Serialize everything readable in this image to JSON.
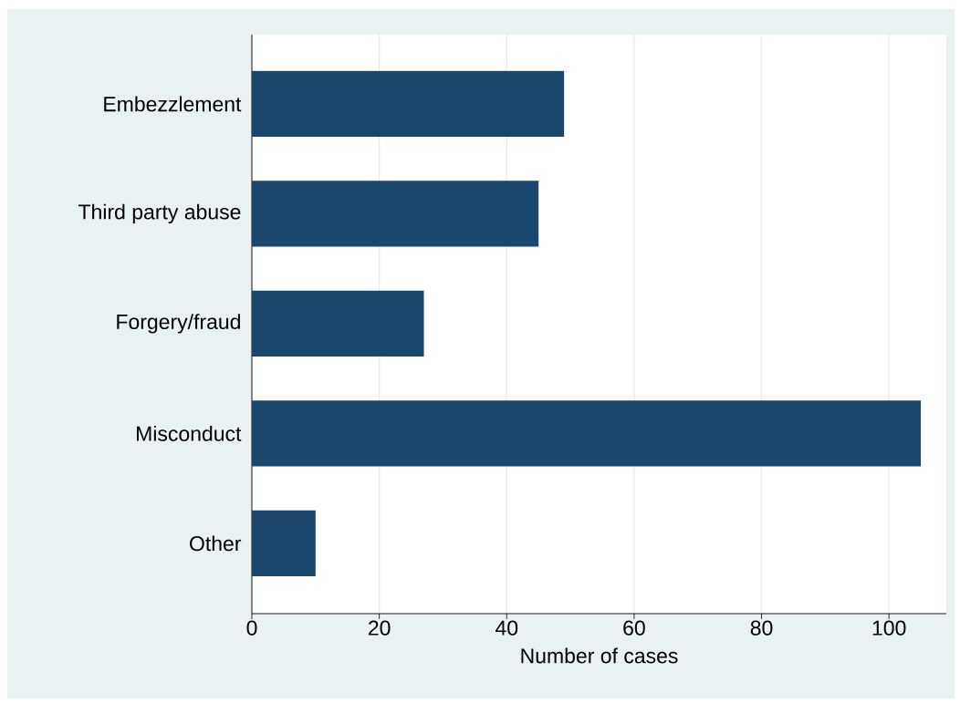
{
  "chart_data": {
    "type": "bar",
    "orientation": "horizontal",
    "categories": [
      "Embezzlement",
      "Third party abuse",
      "Forgery/fraud",
      "Misconduct",
      "Other"
    ],
    "values": [
      49,
      45,
      27,
      105,
      10
    ],
    "color": "#1c476c",
    "xlabel": "Number of cases",
    "xlim": [
      0,
      109
    ],
    "xticks": [
      0,
      20,
      40,
      60,
      80,
      100
    ],
    "grid": "x"
  }
}
